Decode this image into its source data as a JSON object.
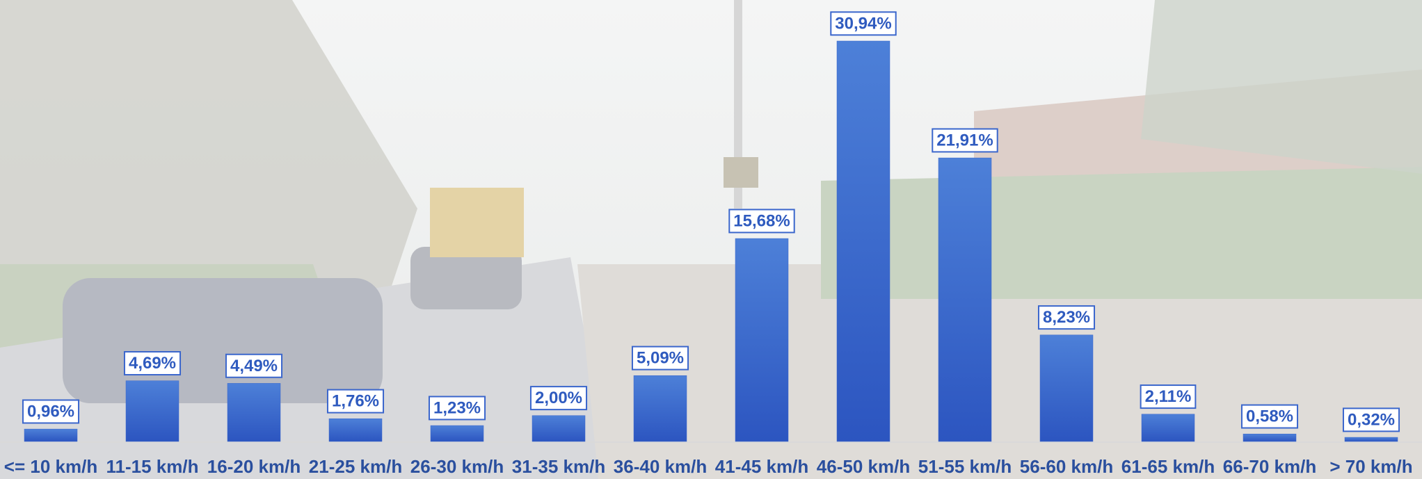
{
  "chart_data": {
    "type": "bar",
    "categories": [
      "<= 10 km/h",
      "11-15 km/h",
      "16-20 km/h",
      "21-25 km/h",
      "26-30 km/h",
      "31-35 km/h",
      "36-40 km/h",
      "41-45 km/h",
      "46-50 km/h",
      "51-55 km/h",
      "56-60 km/h",
      "61-65 km/h",
      "66-70 km/h",
      "> 70 km/h"
    ],
    "values": [
      0.96,
      4.69,
      4.49,
      1.76,
      1.23,
      2.0,
      5.09,
      15.68,
      30.94,
      21.91,
      8.23,
      2.11,
      0.58,
      0.32
    ],
    "value_labels": [
      "0,96%",
      "4,69%",
      "4,49%",
      "1,76%",
      "1,23%",
      "2,00%",
      "5,09%",
      "15,68%",
      "30,94%",
      "21,91%",
      "8,23%",
      "2,11%",
      "0,58%",
      "0,32%"
    ],
    "color": "#3a66cc"
  }
}
